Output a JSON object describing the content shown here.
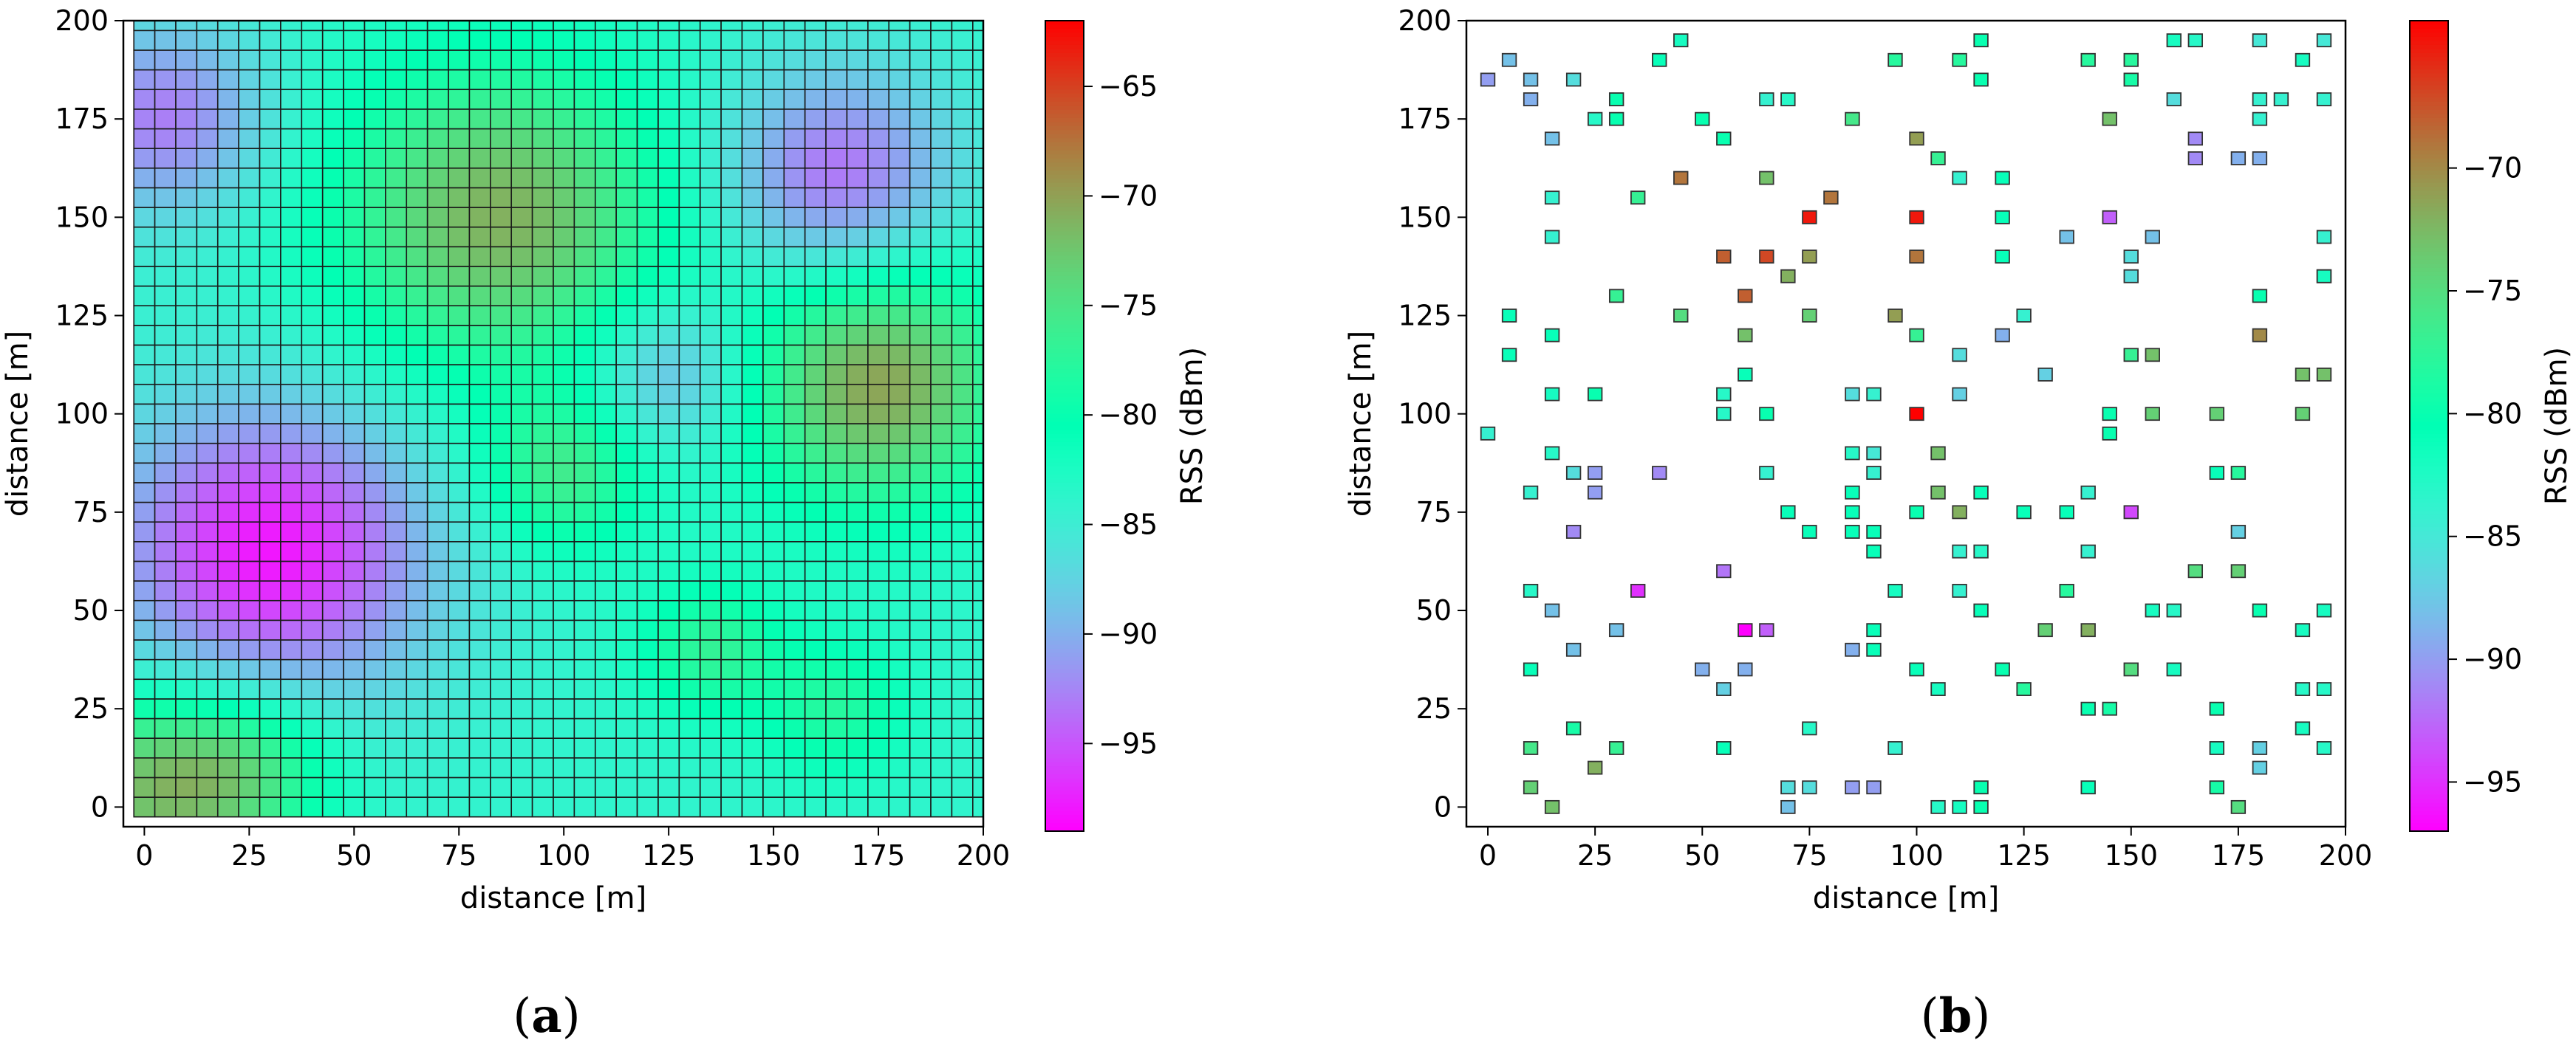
{
  "chart_data": [
    {
      "type": "heatmap",
      "panel": "a",
      "panel_label": "a",
      "xlabel": "distance [m]",
      "ylabel": "distance [m]",
      "xlim": [
        -5,
        200
      ],
      "ylim": [
        -5,
        200
      ],
      "xticks": [
        0,
        25,
        50,
        75,
        100,
        125,
        150,
        175,
        200
      ],
      "yticks": [
        0,
        25,
        50,
        75,
        100,
        125,
        150,
        175,
        200
      ],
      "cell_size_m": 5,
      "grid_spacing_m": 5,
      "grid_extent_m": [
        0,
        200
      ],
      "colorbar": {
        "label": "RSS (dBm)",
        "colormap": "rainbow",
        "range": [
          -99,
          -62
        ],
        "ticks": [
          -65,
          -70,
          -75,
          -80,
          -85,
          -90,
          -95
        ]
      },
      "field": {
        "base_dBm": -84,
        "components": [
          {
            "x": 30,
            "y": 65,
            "amplitude": -14,
            "sigma": 27
          },
          {
            "x": 5,
            "y": 175,
            "amplitude": -9,
            "sigma": 18
          },
          {
            "x": 165,
            "y": 160,
            "amplitude": -10,
            "sigma": 20
          },
          {
            "x": 125,
            "y": 110,
            "amplitude": -7,
            "sigma": 14
          },
          {
            "x": 85,
            "y": 150,
            "amplitude": 13,
            "sigma": 28
          },
          {
            "x": 175,
            "y": 108,
            "amplitude": 14,
            "sigma": 22
          },
          {
            "x": 100,
            "y": 85,
            "amplitude": 8,
            "sigma": 14
          },
          {
            "x": 0,
            "y": 5,
            "amplitude": 11,
            "sigma": 18
          },
          {
            "x": 25,
            "y": 10,
            "amplitude": 8,
            "sigma": 15
          },
          {
            "x": 135,
            "y": 40,
            "amplitude": 7,
            "sigma": 12
          },
          {
            "x": 165,
            "y": 25,
            "amplitude": 6,
            "sigma": 12
          }
        ]
      }
    },
    {
      "type": "scatter",
      "panel": "b",
      "panel_label": "b",
      "xlabel": "distance [m]",
      "ylabel": "distance [m]",
      "xlim": [
        -5,
        200
      ],
      "ylim": [
        -5,
        200
      ],
      "xticks": [
        0,
        25,
        50,
        75,
        100,
        125,
        150,
        175,
        200
      ],
      "yticks": [
        0,
        25,
        50,
        75,
        100,
        125,
        150,
        175,
        200
      ],
      "marker": "square",
      "marker_size_m": 5,
      "colorbar": {
        "label": "RSS (dBm)",
        "colormap": "rainbow",
        "range": [
          -97,
          -64
        ],
        "ticks": [
          -70,
          -75,
          -80,
          -85,
          -90,
          -95
        ]
      },
      "points": [
        [
          0,
          185,
          -90
        ],
        [
          5,
          190,
          -88
        ],
        [
          10,
          185,
          -88
        ],
        [
          10,
          180,
          -89
        ],
        [
          20,
          185,
          -86
        ],
        [
          15,
          170,
          -88
        ],
        [
          25,
          175,
          -83
        ],
        [
          30,
          180,
          -80
        ],
        [
          30,
          175,
          -80
        ],
        [
          40,
          190,
          -81
        ],
        [
          45,
          195,
          -82
        ],
        [
          50,
          175,
          -80
        ],
        [
          55,
          170,
          -80
        ],
        [
          65,
          180,
          -84
        ],
        [
          70,
          180,
          -83
        ],
        [
          85,
          175,
          -76
        ],
        [
          95,
          190,
          -78
        ],
        [
          100,
          170,
          -71
        ],
        [
          105,
          165,
          -77
        ],
        [
          110,
          160,
          -84
        ],
        [
          115,
          195,
          -80
        ],
        [
          115,
          185,
          -80
        ],
        [
          110,
          190,
          -78
        ],
        [
          140,
          190,
          -78
        ],
        [
          150,
          190,
          -78
        ],
        [
          150,
          185,
          -79
        ],
        [
          145,
          175,
          -73
        ],
        [
          160,
          180,
          -86
        ],
        [
          160,
          195,
          -82
        ],
        [
          165,
          195,
          -83
        ],
        [
          165,
          170,
          -91
        ],
        [
          165,
          165,
          -91
        ],
        [
          175,
          165,
          -89
        ],
        [
          180,
          165,
          -89
        ],
        [
          180,
          180,
          -84
        ],
        [
          180,
          175,
          -84
        ],
        [
          185,
          180,
          -84
        ],
        [
          180,
          195,
          -85
        ],
        [
          190,
          190,
          -82
        ],
        [
          195,
          195,
          -85
        ],
        [
          195,
          180,
          -84
        ],
        [
          15,
          155,
          -84
        ],
        [
          15,
          145,
          -84
        ],
        [
          35,
          155,
          -77
        ],
        [
          45,
          160,
          -69
        ],
        [
          65,
          160,
          -73
        ],
        [
          75,
          150,
          -65
        ],
        [
          80,
          155,
          -69
        ],
        [
          100,
          150,
          -65
        ],
        [
          120,
          160,
          -81
        ],
        [
          120,
          150,
          -81
        ],
        [
          145,
          150,
          -93
        ],
        [
          135,
          145,
          -88
        ],
        [
          155,
          145,
          -88
        ],
        [
          150,
          140,
          -86
        ],
        [
          150,
          135,
          -86
        ],
        [
          195,
          145,
          -84
        ],
        [
          195,
          135,
          -84
        ],
        [
          55,
          140,
          -68
        ],
        [
          65,
          140,
          -67
        ],
        [
          70,
          135,
          -72
        ],
        [
          75,
          140,
          -71
        ],
        [
          100,
          140,
          -69
        ],
        [
          120,
          140,
          -81
        ],
        [
          60,
          130,
          -68
        ],
        [
          30,
          130,
          -77
        ],
        [
          5,
          125,
          -81
        ],
        [
          45,
          125,
          -75
        ],
        [
          60,
          120,
          -73
        ],
        [
          75,
          125,
          -74
        ],
        [
          95,
          125,
          -71
        ],
        [
          100,
          120,
          -77
        ],
        [
          110,
          115,
          -86
        ],
        [
          120,
          120,
          -89
        ],
        [
          125,
          125,
          -84
        ],
        [
          150,
          115,
          -77
        ],
        [
          155,
          115,
          -73
        ],
        [
          180,
          130,
          -80
        ],
        [
          180,
          120,
          -70
        ],
        [
          195,
          135,
          -82
        ],
        [
          5,
          115,
          -81
        ],
        [
          15,
          120,
          -81
        ],
        [
          130,
          110,
          -87
        ],
        [
          190,
          110,
          -73
        ],
        [
          195,
          110,
          -73
        ],
        [
          15,
          105,
          -82
        ],
        [
          25,
          105,
          -80
        ],
        [
          55,
          105,
          -83
        ],
        [
          60,
          110,
          -81
        ],
        [
          55,
          100,
          -83
        ],
        [
          65,
          100,
          -80
        ],
        [
          85,
          105,
          -86
        ],
        [
          90,
          105,
          -84
        ],
        [
          100,
          100,
          -64
        ],
        [
          110,
          105,
          -87
        ],
        [
          145,
          100,
          -80
        ],
        [
          145,
          95,
          -80
        ],
        [
          155,
          100,
          -74
        ],
        [
          170,
          100,
          -74
        ],
        [
          190,
          100,
          -74
        ],
        [
          0,
          95,
          -84
        ],
        [
          15,
          90,
          -83
        ],
        [
          20,
          85,
          -86
        ],
        [
          25,
          85,
          -90
        ],
        [
          25,
          80,
          -90
        ],
        [
          40,
          85,
          -91
        ],
        [
          10,
          80,
          -84
        ],
        [
          65,
          85,
          -84
        ],
        [
          85,
          90,
          -83
        ],
        [
          90,
          90,
          -85
        ],
        [
          90,
          85,
          -84
        ],
        [
          85,
          80,
          -81
        ],
        [
          85,
          75,
          -81
        ],
        [
          70,
          75,
          -81
        ],
        [
          75,
          70,
          -81
        ],
        [
          85,
          70,
          -81
        ],
        [
          90,
          70,
          -81
        ],
        [
          90,
          65,
          -81
        ],
        [
          100,
          75,
          -80
        ],
        [
          105,
          80,
          -73
        ],
        [
          105,
          90,
          -73
        ],
        [
          110,
          75,
          -72
        ],
        [
          115,
          80,
          -81
        ],
        [
          110,
          65,
          -84
        ],
        [
          115,
          65,
          -83
        ],
        [
          125,
          75,
          -81
        ],
        [
          135,
          75,
          -81
        ],
        [
          140,
          80,
          -84
        ],
        [
          140,
          65,
          -84
        ],
        [
          150,
          75,
          -94
        ],
        [
          170,
          85,
          -81
        ],
        [
          175,
          85,
          -78
        ],
        [
          175,
          70,
          -87
        ],
        [
          20,
          70,
          -91
        ],
        [
          10,
          55,
          -83
        ],
        [
          15,
          50,
          -88
        ],
        [
          35,
          55,
          -95
        ],
        [
          55,
          60,
          -92
        ],
        [
          95,
          55,
          -82
        ],
        [
          110,
          55,
          -84
        ],
        [
          115,
          50,
          -81
        ],
        [
          135,
          55,
          -78
        ],
        [
          165,
          60,
          -75
        ],
        [
          175,
          60,
          -74
        ],
        [
          180,
          50,
          -80
        ],
        [
          195,
          50,
          -82
        ],
        [
          190,
          45,
          -82
        ],
        [
          20,
          40,
          -88
        ],
        [
          30,
          45,
          -88
        ],
        [
          60,
          45,
          -97
        ],
        [
          65,
          45,
          -93
        ],
        [
          85,
          40,
          -89
        ],
        [
          90,
          40,
          -81
        ],
        [
          90,
          45,
          -81
        ],
        [
          130,
          45,
          -74
        ],
        [
          140,
          45,
          -72
        ],
        [
          155,
          50,
          -82
        ],
        [
          160,
          50,
          -83
        ],
        [
          10,
          35,
          -81
        ],
        [
          50,
          35,
          -89
        ],
        [
          55,
          30,
          -87
        ],
        [
          60,
          35,
          -89
        ],
        [
          100,
          35,
          -81
        ],
        [
          105,
          30,
          -82
        ],
        [
          120,
          35,
          -80
        ],
        [
          125,
          30,
          -78
        ],
        [
          140,
          25,
          -80
        ],
        [
          145,
          25,
          -79
        ],
        [
          150,
          35,
          -75
        ],
        [
          160,
          35,
          -82
        ],
        [
          170,
          25,
          -80
        ],
        [
          190,
          30,
          -83
        ],
        [
          195,
          30,
          -83
        ],
        [
          190,
          20,
          -82
        ],
        [
          20,
          20,
          -79
        ],
        [
          75,
          20,
          -83
        ],
        [
          10,
          15,
          -76
        ],
        [
          30,
          15,
          -77
        ],
        [
          25,
          10,
          -72
        ],
        [
          55,
          15,
          -81
        ],
        [
          95,
          15,
          -84
        ],
        [
          170,
          15,
          -82
        ],
        [
          180,
          15,
          -87
        ],
        [
          180,
          10,
          -87
        ],
        [
          195,
          15,
          -83
        ],
        [
          10,
          5,
          -74
        ],
        [
          15,
          0,
          -73
        ],
        [
          70,
          5,
          -86
        ],
        [
          75,
          5,
          -86
        ],
        [
          70,
          0,
          -88
        ],
        [
          85,
          5,
          -90
        ],
        [
          90,
          5,
          -90
        ],
        [
          105,
          0,
          -83
        ],
        [
          110,
          0,
          -82
        ],
        [
          115,
          5,
          -80
        ],
        [
          115,
          0,
          -80
        ],
        [
          140,
          5,
          -81
        ],
        [
          170,
          5,
          -79
        ],
        [
          175,
          0,
          -75
        ]
      ]
    }
  ]
}
